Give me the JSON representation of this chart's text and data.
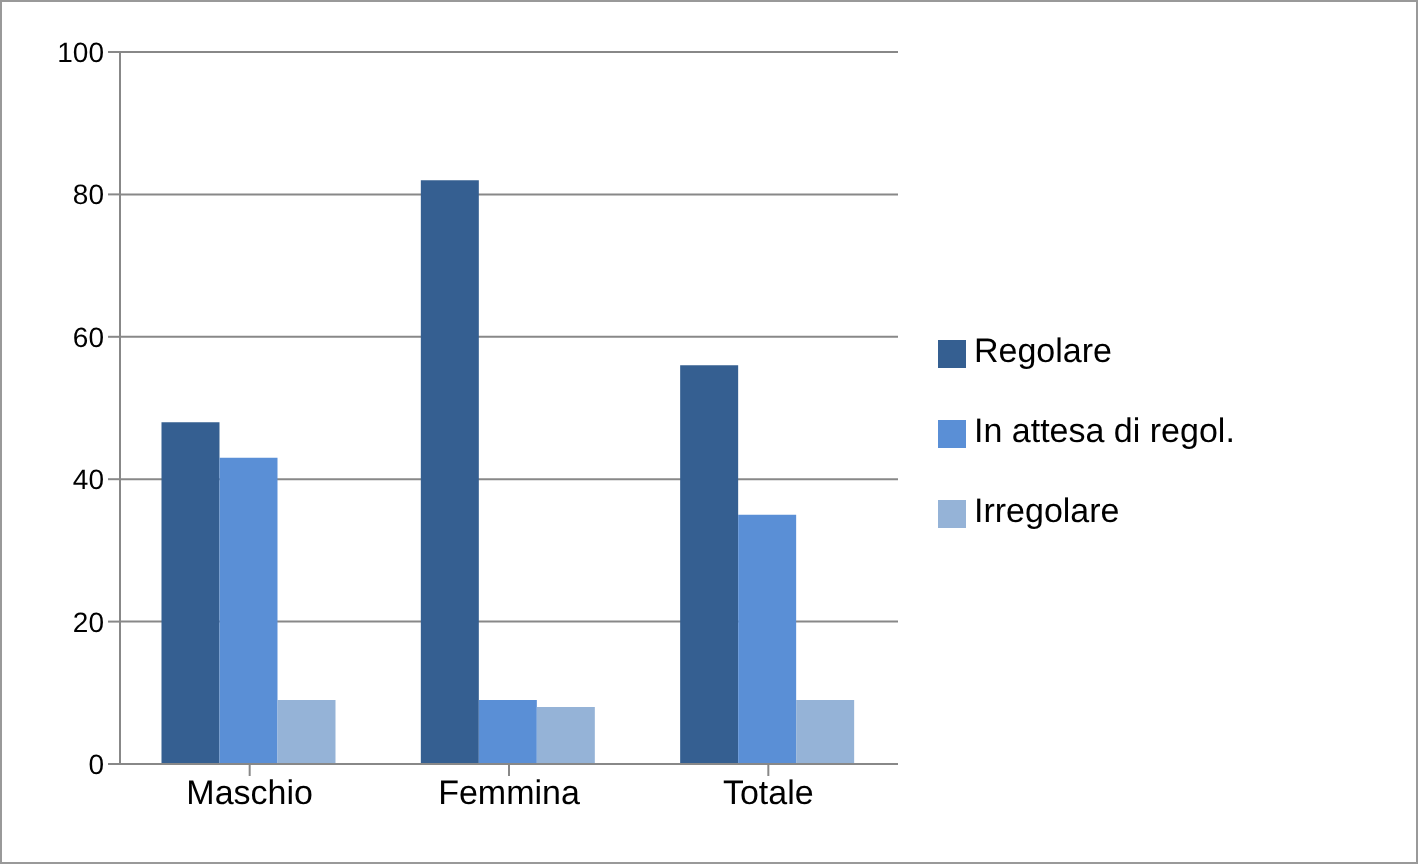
{
  "chart_data": {
    "type": "bar",
    "categories": [
      "Maschio",
      "Femmina",
      "Totale"
    ],
    "series": [
      {
        "name": "Regolare",
        "color": "#355f91",
        "values": [
          48,
          82,
          56
        ]
      },
      {
        "name": "In attesa di regol.",
        "color": "#5a8fd6",
        "values": [
          43,
          9,
          35
        ]
      },
      {
        "name": "Irregolare",
        "color": "#95b3d7",
        "values": [
          9,
          8,
          9
        ]
      }
    ],
    "ylim": [
      0,
      100
    ],
    "yticks": [
      0,
      20,
      40,
      60,
      80,
      100
    ],
    "grid": "y",
    "legend": "right"
  }
}
